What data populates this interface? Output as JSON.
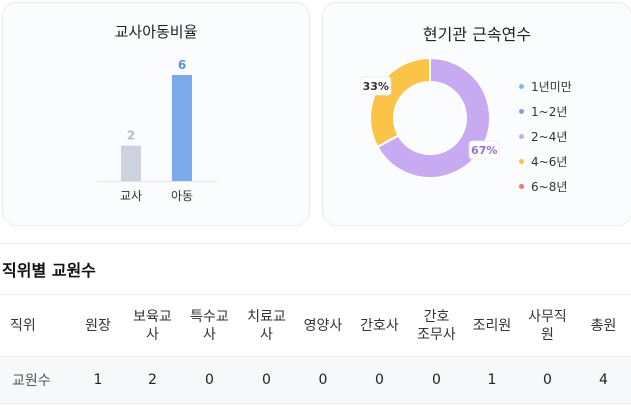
{
  "ratio_card": {
    "title": "교사아동비율",
    "chart_data": {
      "type": "bar",
      "categories": [
        "교사",
        "아동"
      ],
      "values": [
        2,
        6
      ],
      "colors": [
        "#ccd3df",
        "#7ba9e9"
      ],
      "value_label_colors": [
        "#b6bec9",
        "#5b8fe0"
      ],
      "ylim": [
        0,
        6
      ]
    }
  },
  "tenure_card": {
    "title": "현기관 근속연수",
    "chart_data": {
      "type": "pie",
      "labels": [
        "1년미만",
        "1~2년",
        "2~4년",
        "4~6년",
        "6~8년"
      ],
      "values": [
        0,
        0,
        67,
        33,
        0
      ],
      "percent_labels": [
        "",
        "",
        "67%",
        "33%",
        ""
      ],
      "colors": [
        "#74c0f4",
        "#8f97e8",
        "#c7aaf2",
        "#fbc347",
        "#f27b66"
      ],
      "donut": true
    }
  },
  "staff_section": {
    "title": "직위별 교원수",
    "headers": [
      [
        "직위"
      ],
      [
        "원장"
      ],
      [
        "보육교",
        "사"
      ],
      [
        "특수교",
        "사"
      ],
      [
        "치료교",
        "사"
      ],
      [
        "영양사"
      ],
      [
        "간호사"
      ],
      [
        "간호",
        "조무사"
      ],
      [
        "조리원"
      ],
      [
        "사무직",
        "원"
      ],
      [
        "총원"
      ]
    ],
    "row": [
      "교원수",
      "1",
      "2",
      "0",
      "0",
      "0",
      "0",
      "0",
      "1",
      "0",
      "4"
    ]
  }
}
